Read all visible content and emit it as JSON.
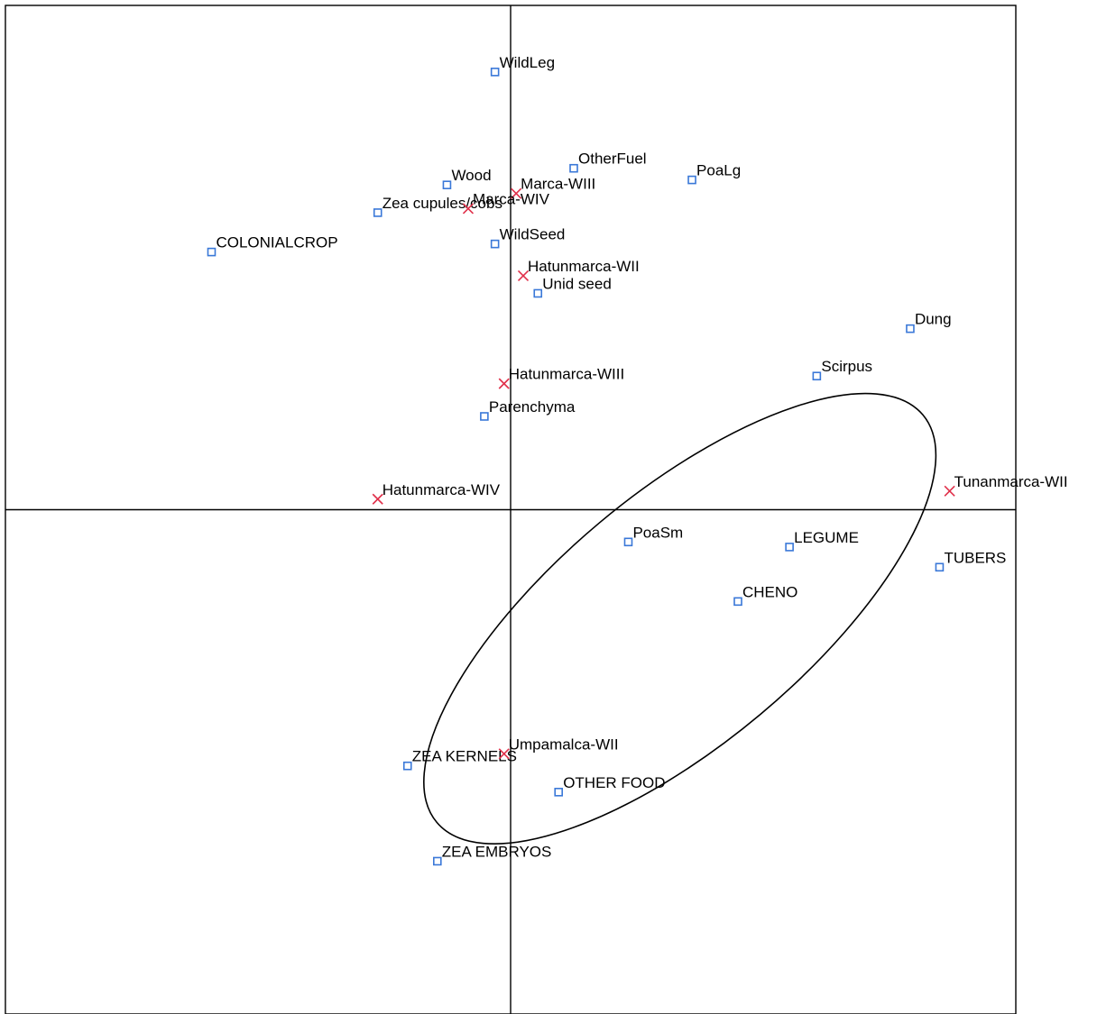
{
  "chart_data": {
    "type": "scatter",
    "title": "",
    "xlabel": "",
    "ylabel": "",
    "xlim": [
      -1.0,
      1.0
    ],
    "ylim": [
      -1.0,
      1.0
    ],
    "grid": false,
    "legend": "none",
    "colors": {
      "species": "#3a78d8",
      "sites": "#e0304a",
      "frame": "#000000"
    },
    "series": [
      {
        "marker": "square",
        "points": [
          {
            "label": "WildLeg",
            "x": -0.031,
            "y": 0.868
          },
          {
            "label": "OtherFuel",
            "x": 0.125,
            "y": 0.677
          },
          {
            "label": "PoaLg",
            "x": 0.359,
            "y": 0.654
          },
          {
            "label": "Wood",
            "x": -0.126,
            "y": 0.644
          },
          {
            "label": "Zea cupules/cobs",
            "x": -0.263,
            "y": 0.589
          },
          {
            "label": "COLONIALCROP",
            "x": -0.592,
            "y": 0.511
          },
          {
            "label": "WildSeed",
            "x": -0.031,
            "y": 0.527
          },
          {
            "label": "Unid seed",
            "x": 0.054,
            "y": 0.429
          },
          {
            "label": "Dung",
            "x": 0.791,
            "y": 0.359
          },
          {
            "label": "Scirpus",
            "x": 0.606,
            "y": 0.265
          },
          {
            "label": "Parenchyma",
            "x": -0.052,
            "y": 0.185
          },
          {
            "label": "PoaSm",
            "x": 0.233,
            "y": -0.064
          },
          {
            "label": "LEGUME",
            "x": 0.552,
            "y": -0.074
          },
          {
            "label": "TUBERS",
            "x": 0.849,
            "y": -0.114
          },
          {
            "label": "CHENO",
            "x": 0.45,
            "y": -0.182
          },
          {
            "label": "ZEA KERNELS",
            "x": -0.204,
            "y": -0.508
          },
          {
            "label": "OTHER FOOD",
            "x": 0.095,
            "y": -0.56
          },
          {
            "label": "ZEA EMBRYOS",
            "x": -0.145,
            "y": -0.697
          }
        ]
      },
      {
        "marker": "cross",
        "points": [
          {
            "label": "Marca-WIII",
            "x": 0.011,
            "y": 0.627
          },
          {
            "label": "Marca-WIV",
            "x": -0.084,
            "y": 0.597
          },
          {
            "label": "Hatunmarca-WII",
            "x": 0.025,
            "y": 0.464
          },
          {
            "label": "Hatunmarca-WIII",
            "x": -0.013,
            "y": 0.25
          },
          {
            "label": "Hatunmarca-WIV",
            "x": -0.263,
            "y": 0.021
          },
          {
            "label": "Tunanmarca-WII",
            "x": 0.869,
            "y": 0.037
          },
          {
            "label": "Umpamalca-WII",
            "x": -0.013,
            "y": -0.484
          }
        ]
      }
    ],
    "ellipse": {
      "cx": 0.335,
      "cy": -0.216,
      "rx": 0.628,
      "ry": 0.248,
      "rotation_deg": 40
    }
  }
}
